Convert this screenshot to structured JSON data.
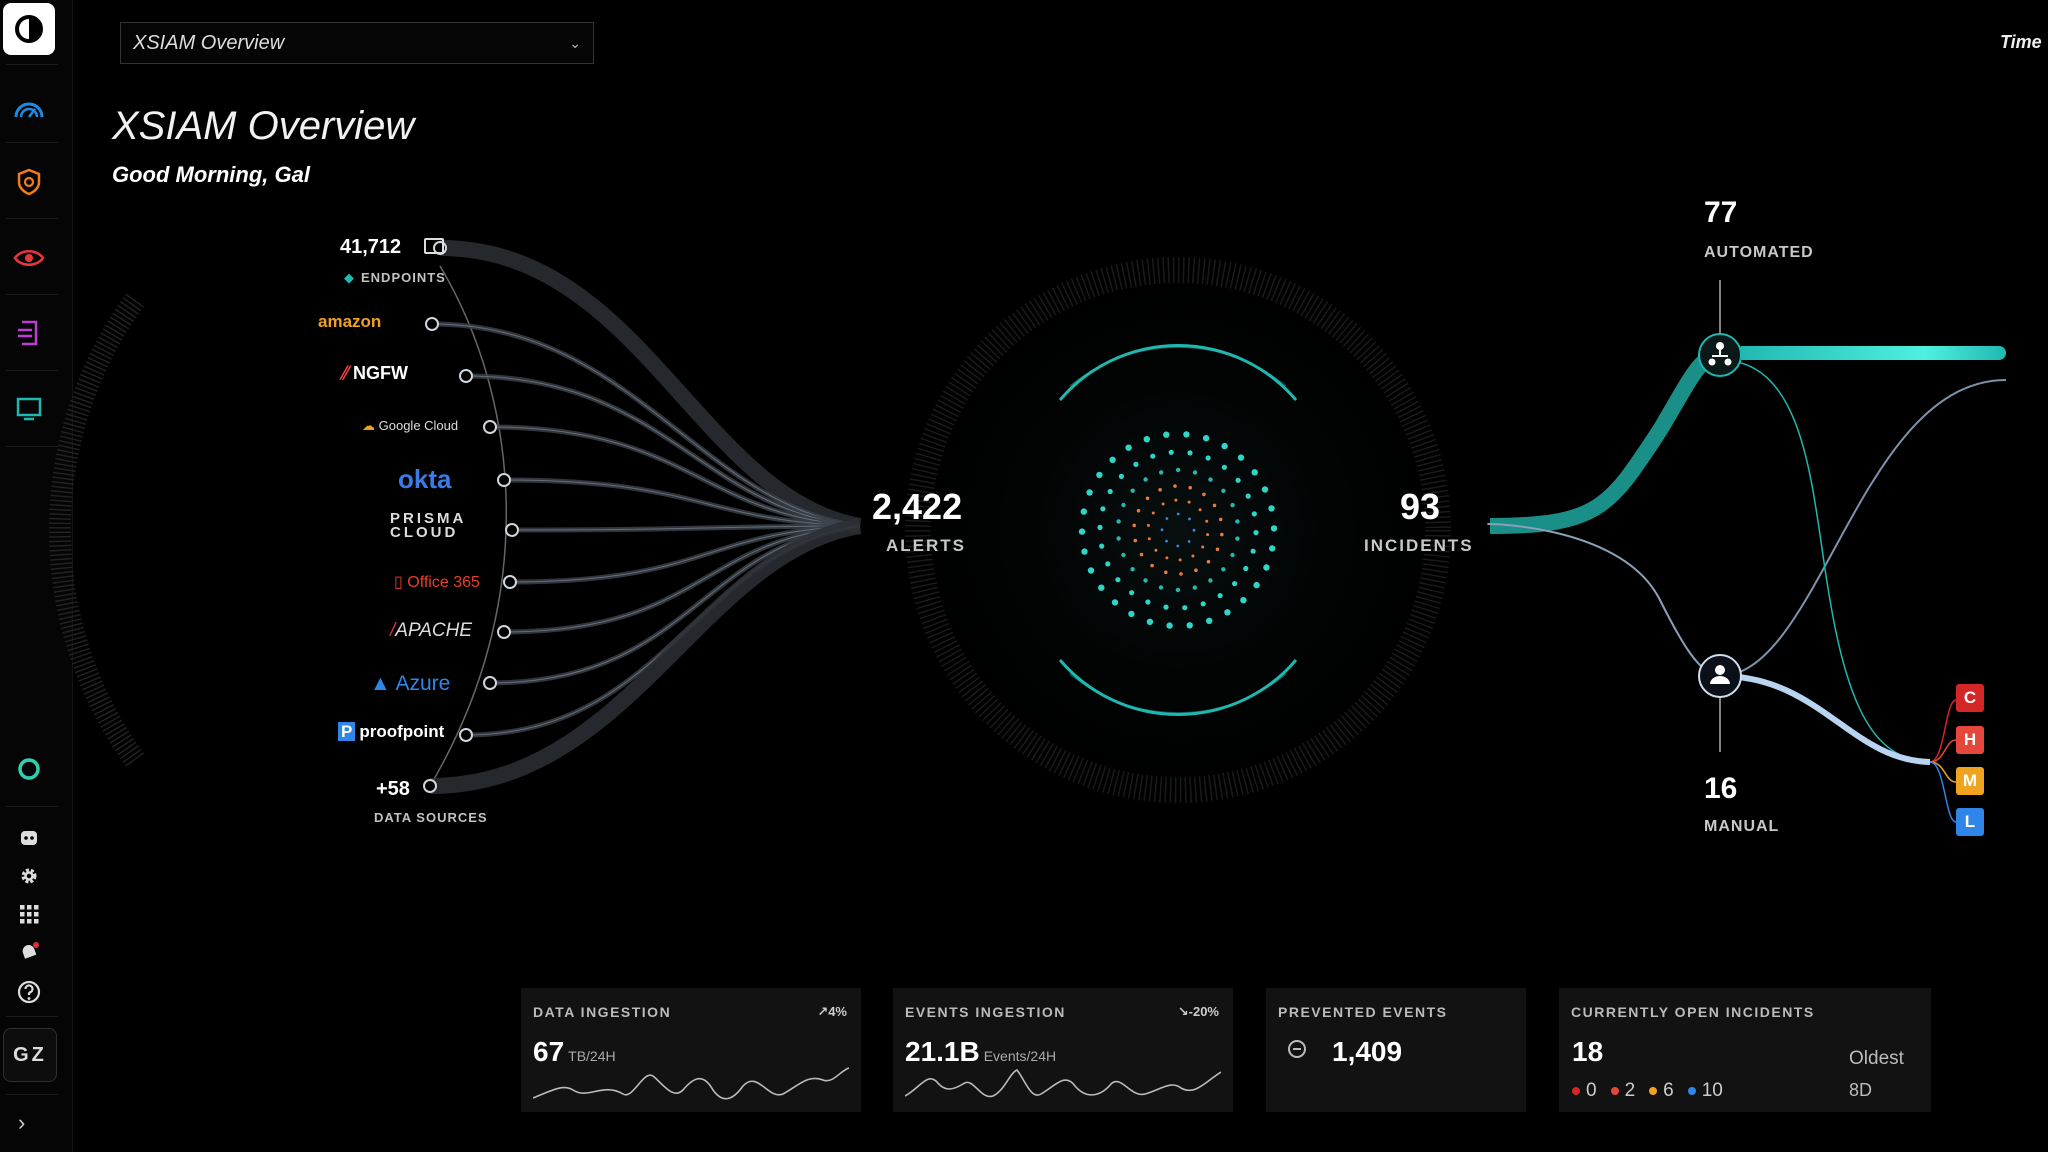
{
  "header": {
    "dashboard_select": "XSIAM Overview",
    "time_label": "Time",
    "title": "XSIAM Overview",
    "greeting": "Good Morning, Gal"
  },
  "sidebar": {
    "avatar_initials": "GZ"
  },
  "sources": {
    "endpoints_count": "41,712",
    "endpoints_label": "ENDPOINTS",
    "items": [
      "amazon",
      "NGFW",
      "Google Cloud",
      "okta",
      "PRISMA CLOUD",
      "Office 365",
      "APACHE",
      "Azure",
      "proofpoint"
    ],
    "more_count": "+58",
    "more_label": "DATA SOURCES"
  },
  "alerts": {
    "count": "2,422",
    "label": "ALERTS"
  },
  "incidents": {
    "count": "93",
    "label": "INCIDENTS"
  },
  "automated": {
    "count": "77",
    "label": "AUTOMATED"
  },
  "manual": {
    "count": "16",
    "label": "MANUAL"
  },
  "severity": {
    "letters": [
      "C",
      "H",
      "M",
      "L"
    ],
    "colors": [
      "#d32626",
      "#e5483a",
      "#f0a320",
      "#2f86e8"
    ]
  },
  "cards": {
    "data_ingestion": {
      "title": "DATA INGESTION",
      "delta": "↗4%",
      "value": "67",
      "unit": "TB/24H"
    },
    "events_ingestion": {
      "title": "EVENTS INGESTION",
      "delta": "↘-20%",
      "value": "21.1B",
      "unit": "Events/24H"
    },
    "prevented_events": {
      "title": "PREVENTED EVENTS",
      "value": "1,409"
    },
    "open_incidents": {
      "title": "CURRENTLY OPEN INCIDENTS",
      "value": "18",
      "counts": [
        "0",
        "2",
        "6",
        "10"
      ],
      "oldest_label": "Oldest",
      "oldest_value": "8D"
    }
  }
}
